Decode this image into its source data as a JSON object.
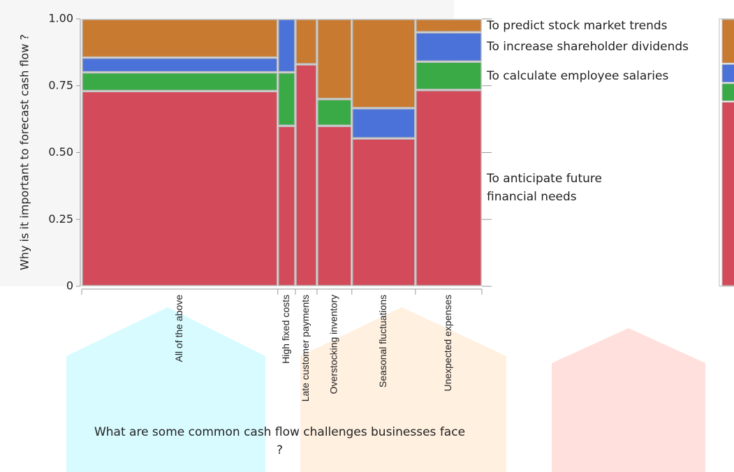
{
  "chart_data": {
    "type": "mosaic",
    "x_label": "What are some common cash flow challenges businesses face ?",
    "y_label": "Why is it important to forecast cash flow ?",
    "categories": [
      "All of the above",
      "High fixed costs",
      "Late customer payments",
      "Overstocking inventory",
      "Seasonal fluctuations",
      "Unexpected expenses"
    ],
    "category_shares": [
      0.49,
      0.044,
      0.054,
      0.087,
      0.159,
      0.166
    ],
    "series": [
      {
        "name": "To anticipate future financial needs",
        "color": "#d34a5a",
        "values": [
          0.73,
          0.6,
          0.83,
          0.6,
          0.553,
          0.734
        ]
      },
      {
        "name": "To calculate employee salaries",
        "color": "#3aaa47",
        "values": [
          0.07,
          0.2,
          0,
          0.1,
          0,
          0.106
        ]
      },
      {
        "name": "To increase shareholder dividends",
        "color": "#4a72d8",
        "values": [
          0.055,
          0.2,
          0,
          0,
          0.113,
          0.11
        ]
      },
      {
        "name": "To predict stock market trends",
        "color": "#c87a30",
        "values": [
          0.145,
          0,
          0.17,
          0.3,
          0.334,
          0.05
        ]
      }
    ],
    "ylim": [
      0,
      1
    ],
    "yticks": [
      0,
      0.25,
      {
        "value": 0.5,
        "label": "0.50"
      },
      0.75,
      {
        "value": 1,
        "label": "1.00"
      }
    ]
  }
}
